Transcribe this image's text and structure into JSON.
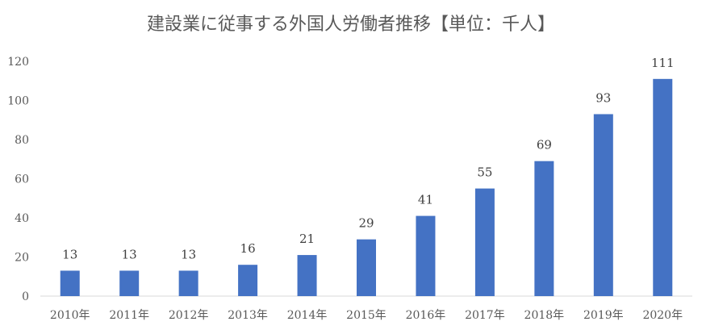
{
  "chart_data": {
    "type": "bar",
    "title": "建設業に従事する外国人労働者推移【単位：千人】",
    "xlabel": "",
    "ylabel": "",
    "categories": [
      "2010年",
      "2011年",
      "2012年",
      "2013年",
      "2014年",
      "2015年",
      "2016年",
      "2017年",
      "2018年",
      "2019年",
      "2020年"
    ],
    "values": [
      13,
      13,
      13,
      16,
      21,
      29,
      41,
      55,
      69,
      93,
      111
    ],
    "ylim": [
      0,
      120
    ],
    "yticks": [
      0,
      20,
      40,
      60,
      80,
      100,
      120
    ],
    "grid": false,
    "legend": "none",
    "bar_color": "#4472C4",
    "axis_color": "#D9D9D9"
  }
}
